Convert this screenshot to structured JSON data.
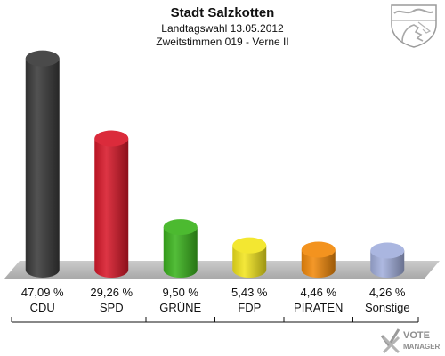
{
  "header": {
    "title": "Stadt Salzkotten",
    "subtitle": "Landtagswahl 13.05.2012",
    "caption": "Zweitstimmen 019 - Verne II"
  },
  "watermark": {
    "line1": "VOTE",
    "line2": "MANAGER",
    "icon": "checkmark-x-icon"
  },
  "crest_icon": "coat-of-arms-icon",
  "chart_data": {
    "type": "bar",
    "title": "Stadt Salzkotten",
    "subtitle": "Landtagswahl 13.05.2012 / Zweitstimmen 019 - Verne II",
    "xlabel": "",
    "ylabel": "",
    "ylim": [
      0,
      50
    ],
    "grid": false,
    "legend": "none",
    "categories": [
      "CDU",
      "SPD",
      "GRÜNE",
      "FDP",
      "PIRATEN",
      "Sonstige"
    ],
    "values": [
      47.09,
      29.26,
      9.5,
      5.43,
      4.46,
      4.26
    ],
    "value_labels": [
      "47,09 %",
      "29,26 %",
      "9,50 %",
      "5,43 %",
      "4,46 %",
      "4,26 %"
    ],
    "colors": [
      "#3a3a3a",
      "#d8192a",
      "#3cb41e",
      "#f2e51f",
      "#f28a0c",
      "#a3b0dd"
    ]
  }
}
